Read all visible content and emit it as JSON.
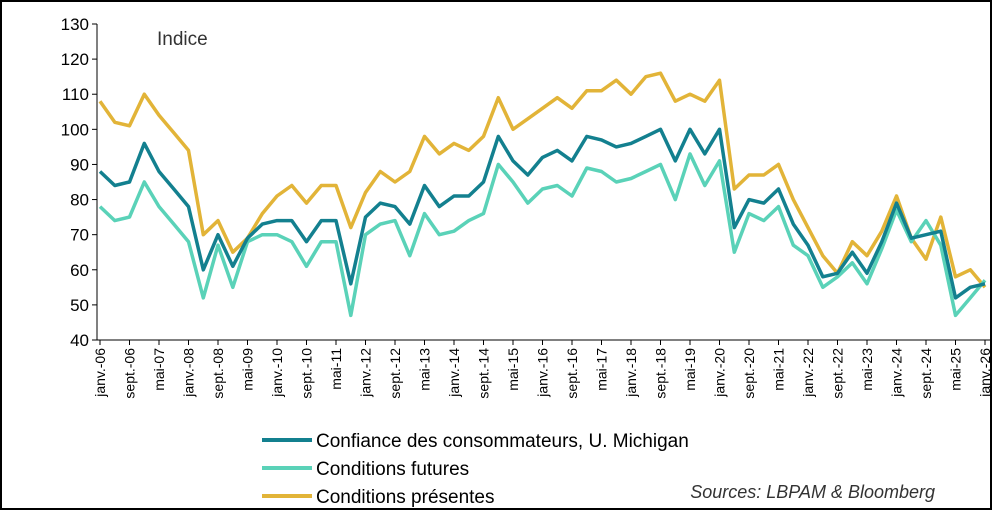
{
  "chart_data": {
    "type": "line",
    "annotation": "Indice",
    "source": "Sources: LBPAM & Bloomberg",
    "categories": [
      "janv.-06",
      null,
      "sept.-06",
      null,
      "mai-07",
      null,
      "janv.-08",
      null,
      "sept.-08",
      null,
      "mai-09",
      null,
      "janv.-10",
      null,
      "sept.-10",
      null,
      "mai-11",
      null,
      "janv.-12",
      null,
      "sept.-12",
      null,
      "mai-13",
      null,
      "janv.-14",
      null,
      "sept.-14",
      null,
      "mai-15",
      null,
      "janv.-16",
      null,
      "sept.-16",
      null,
      "mai-17",
      null,
      "janv.-18",
      null,
      "sept.-18",
      null,
      "mai-19",
      null,
      "janv.-20",
      null,
      "sept.-20",
      null,
      "mai-21",
      null,
      "janv.-22",
      null,
      "sept.-22",
      null,
      "mai-23",
      null,
      "janv.-24",
      null,
      "sept.-24",
      null,
      "mai-25",
      null,
      "janv.-26"
    ],
    "series": [
      {
        "name": "Confiance des consommateurs, U. Michigan",
        "color": "#13808f",
        "values": [
          88,
          84,
          85,
          96,
          88,
          83,
          78,
          60,
          70,
          61,
          69,
          73,
          74,
          74,
          68,
          74,
          74,
          56,
          75,
          79,
          78,
          73,
          84,
          78,
          81,
          81,
          85,
          98,
          91,
          87,
          92,
          94,
          91,
          98,
          97,
          95,
          96,
          98,
          100,
          91,
          100,
          93,
          100,
          72,
          80,
          79,
          83,
          73,
          67,
          58,
          59,
          65,
          59,
          68,
          79,
          69,
          70,
          71,
          52,
          55,
          56
        ]
      },
      {
        "name": "Conditions futures",
        "color": "#5ad2b8",
        "values": [
          78,
          74,
          75,
          85,
          78,
          73,
          68,
          52,
          67,
          55,
          68,
          70,
          70,
          68,
          61,
          68,
          68,
          47,
          70,
          73,
          74,
          64,
          76,
          70,
          71,
          74,
          76,
          90,
          85,
          79,
          83,
          84,
          81,
          89,
          88,
          85,
          86,
          88,
          90,
          80,
          93,
          84,
          91,
          65,
          76,
          74,
          78,
          67,
          64,
          55,
          58,
          62,
          56,
          66,
          77,
          68,
          74,
          67,
          47,
          52,
          57
        ]
      },
      {
        "name": "Conditions présentes",
        "color": "#e2b438",
        "values": [
          108,
          102,
          101,
          110,
          104,
          99,
          94,
          70,
          74,
          65,
          69,
          76,
          81,
          84,
          79,
          84,
          84,
          72,
          82,
          88,
          85,
          88,
          98,
          93,
          96,
          94,
          98,
          109,
          100,
          103,
          106,
          109,
          106,
          111,
          111,
          114,
          110,
          115,
          116,
          108,
          110,
          108,
          114,
          83,
          87,
          87,
          90,
          80,
          72,
          64,
          59,
          68,
          64,
          71,
          81,
          69,
          63,
          75,
          58,
          60,
          55
        ]
      }
    ],
    "ylim": [
      40,
      130
    ],
    "yticks": [
      40,
      50,
      60,
      70,
      80,
      90,
      100,
      110,
      120,
      130
    ],
    "legend": "bottom"
  }
}
